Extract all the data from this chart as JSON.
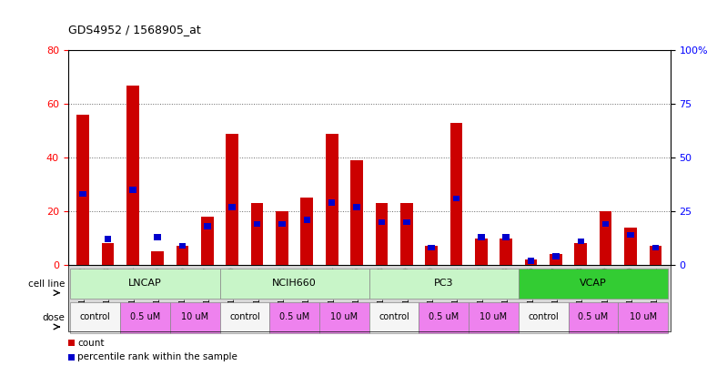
{
  "title": "GDS4952 / 1568905_at",
  "samples": [
    "GSM1359772",
    "GSM1359773",
    "GSM1359774",
    "GSM1359775",
    "GSM1359776",
    "GSM1359777",
    "GSM1359760",
    "GSM1359761",
    "GSM1359762",
    "GSM1359763",
    "GSM1359764",
    "GSM1359765",
    "GSM1359778",
    "GSM1359779",
    "GSM1359780",
    "GSM1359781",
    "GSM1359782",
    "GSM1359783",
    "GSM1359766",
    "GSM1359767",
    "GSM1359768",
    "GSM1359769",
    "GSM1359770",
    "GSM1359771"
  ],
  "red_values": [
    56,
    8,
    67,
    5,
    7,
    18,
    49,
    23,
    20,
    25,
    49,
    39,
    23,
    23,
    7,
    53,
    10,
    10,
    2,
    4,
    8,
    20,
    14,
    7
  ],
  "blue_values": [
    33,
    12,
    35,
    13,
    9,
    18,
    27,
    19,
    19,
    21,
    29,
    27,
    20,
    20,
    8,
    31,
    13,
    13,
    2,
    4,
    11,
    19,
    14,
    8
  ],
  "cell_groups": [
    {
      "name": "LNCAP",
      "start": 0,
      "end": 5,
      "color": "#c8f5c8"
    },
    {
      "name": "NCIH660",
      "start": 6,
      "end": 11,
      "color": "#c8f5c8"
    },
    {
      "name": "PC3",
      "start": 12,
      "end": 17,
      "color": "#c8f5c8"
    },
    {
      "name": "VCAP",
      "start": 18,
      "end": 23,
      "color": "#33cc33"
    }
  ],
  "dose_groups": [
    {
      "label": "control",
      "start": 0,
      "end": 1,
      "color": "#f5f5f5"
    },
    {
      "label": "0.5 uM",
      "start": 2,
      "end": 3,
      "color": "#ee82ee"
    },
    {
      "label": "10 uM",
      "start": 4,
      "end": 5,
      "color": "#ee82ee"
    },
    {
      "label": "control",
      "start": 6,
      "end": 7,
      "color": "#f5f5f5"
    },
    {
      "label": "0.5 uM",
      "start": 8,
      "end": 9,
      "color": "#ee82ee"
    },
    {
      "label": "10 uM",
      "start": 10,
      "end": 11,
      "color": "#ee82ee"
    },
    {
      "label": "control",
      "start": 12,
      "end": 13,
      "color": "#f5f5f5"
    },
    {
      "label": "0.5 uM",
      "start": 14,
      "end": 15,
      "color": "#ee82ee"
    },
    {
      "label": "10 uM",
      "start": 16,
      "end": 17,
      "color": "#ee82ee"
    },
    {
      "label": "control",
      "start": 18,
      "end": 19,
      "color": "#f5f5f5"
    },
    {
      "label": "0.5 uM",
      "start": 20,
      "end": 21,
      "color": "#ee82ee"
    },
    {
      "label": "10 uM",
      "start": 22,
      "end": 23,
      "color": "#ee82ee"
    }
  ],
  "left_ylim": [
    0,
    80
  ],
  "left_yticks": [
    0,
    20,
    40,
    60,
    80
  ],
  "right_ylim": [
    0,
    100
  ],
  "right_yticks": [
    0,
    25,
    50,
    75,
    100
  ],
  "red_color": "#cc0000",
  "blue_color": "#0000cc",
  "bar_width": 0.5,
  "xtick_bg": "#d8d8d8",
  "plot_bg": "#ffffff"
}
